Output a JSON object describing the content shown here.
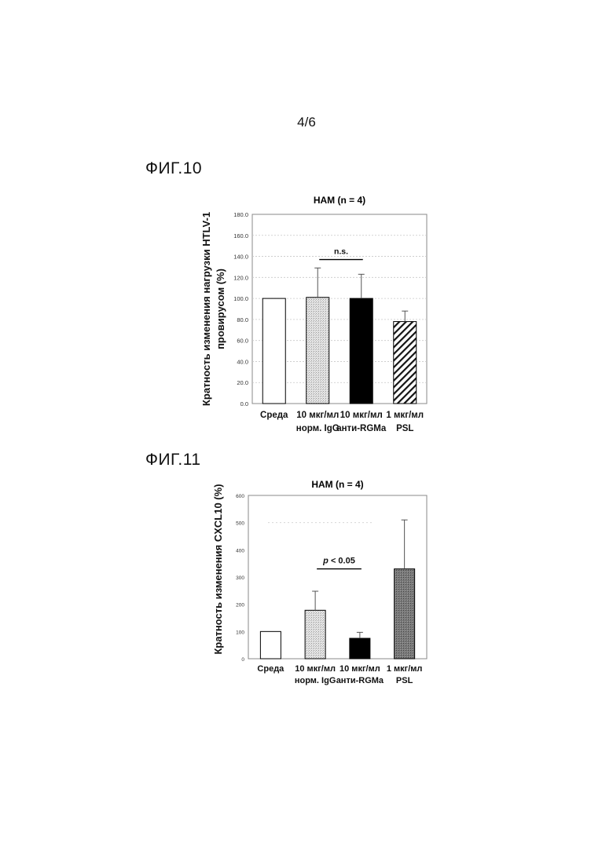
{
  "page": {
    "number": "4/6"
  },
  "figures": [
    {
      "id": "fig10",
      "label": "ФИГ.10"
    },
    {
      "id": "fig11",
      "label": "ФИГ.11"
    }
  ],
  "chart_data": [
    {
      "type": "bar",
      "title": "HAM (n = 4)",
      "ylabel_lines": [
        "Кратность изменения нагрузки HTLV-1",
        "провирусом (%)"
      ],
      "xlabel": "",
      "ylim": [
        0,
        180
      ],
      "yticks": [
        "0.0",
        "20.0",
        "40.0",
        "60.0",
        "80.0",
        "100.0",
        "120.0",
        "140.0",
        "160.0",
        "180.0"
      ],
      "grid": true,
      "categories": [
        [
          "Среда"
        ],
        [
          "10 мкг/мл",
          "норм. IgG"
        ],
        [
          "10 мкг/мл",
          "анти-RGMa"
        ],
        [
          "1 мкг/мл",
          "PSL"
        ]
      ],
      "values": [
        100,
        101,
        100,
        78
      ],
      "errors": [
        0,
        28,
        23,
        10
      ],
      "fills": [
        "white",
        "dotted-light",
        "black",
        "hatched"
      ],
      "annotation": {
        "text": "n.s.",
        "italic": false,
        "from": 1,
        "to": 2,
        "y": 137
      }
    },
    {
      "type": "bar",
      "title": "HAM (n = 4)",
      "ylabel_lines": [
        "Кратность изменения CXCL10 (%)"
      ],
      "xlabel": "",
      "ylim": [
        0,
        600
      ],
      "yticks": [
        "0",
        "100",
        "200",
        "300",
        "400",
        "500",
        "600"
      ],
      "grid": false,
      "dotted_reference_at": 500,
      "categories": [
        [
          "Среда"
        ],
        [
          "10 мкг/мл",
          "норм. IgG"
        ],
        [
          "10 мкг/мл",
          "анти-RGMa"
        ],
        [
          "1 мкг/мл",
          "PSL"
        ]
      ],
      "values": [
        100,
        178,
        75,
        330
      ],
      "errors": [
        0,
        70,
        22,
        180
      ],
      "fills": [
        "white",
        "dotted-light",
        "black",
        "dotted-dark"
      ],
      "annotation": {
        "text_italic": "p",
        "text": " < 0.05",
        "from": 1,
        "to": 2,
        "y": 330
      }
    }
  ]
}
